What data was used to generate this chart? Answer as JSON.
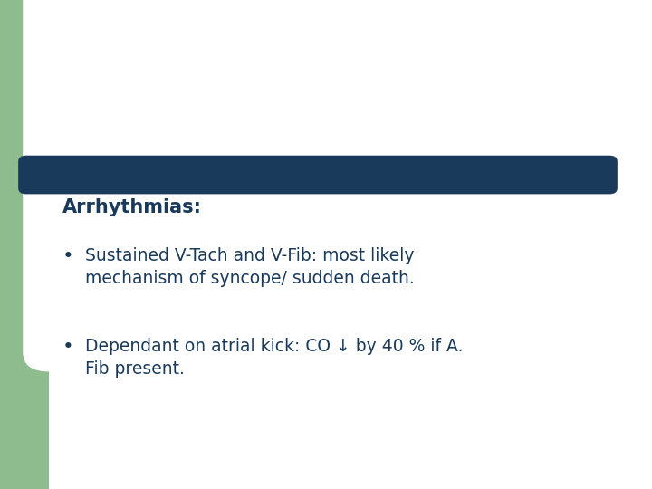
{
  "background_color": "#ffffff",
  "green_color": "#8fbc8f",
  "navy_color": "#1a3a5c",
  "title_text": "Arrhythmias:",
  "title_color": "#1a3a5c",
  "title_fontsize": 15,
  "bullet_color": "#1a3a5c",
  "bullet_fontsize": 13.5,
  "bullets": [
    "Sustained V-Tach and V-Fib: most likely\nmechanism of syncope/ sudden death.",
    "Dependant on atrial kick: CO ↓ by 40 % if A.\nFib present."
  ],
  "figwidth": 7.2,
  "figheight": 5.4,
  "dpi": 100
}
